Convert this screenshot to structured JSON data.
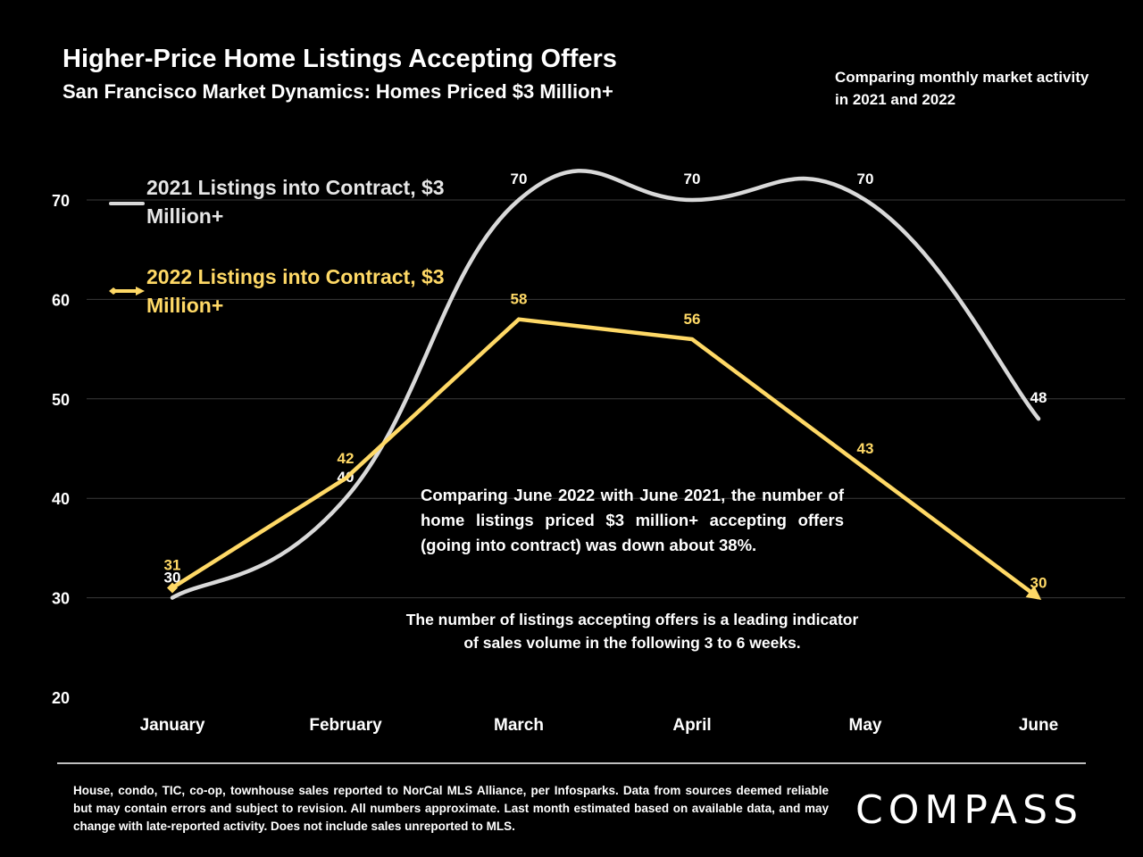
{
  "header": {
    "title": "Higher-Price Home Listings Accepting Offers",
    "subtitle": "San Francisco Market Dynamics: Homes Priced $3 Million+",
    "note": "Comparing monthly market activity in 2021 and 2022"
  },
  "chart_data": {
    "type": "line",
    "categories": [
      "January",
      "February",
      "March",
      "April",
      "May",
      "June"
    ],
    "ylim": [
      20,
      70
    ],
    "yticks": [
      20,
      30,
      40,
      50,
      60,
      70
    ],
    "grid": true,
    "legend_position": "top-left",
    "series": [
      {
        "name": "2021 Listings into Contract, $3 Million+",
        "values": [
          30,
          40,
          70,
          70,
          70,
          48
        ],
        "color": "#d9d9d9",
        "smooth": true
      },
      {
        "name": "2022 Listings into Contract, $3 Million+",
        "values": [
          31,
          42,
          58,
          56,
          43,
          30
        ],
        "color": "#ffd966",
        "smooth": false
      }
    ]
  },
  "legend": {
    "s2021": "2021 Listings into Contract, $3 Million+",
    "s2022": "2022 Listings into Contract, $3 Million+"
  },
  "annotations": {
    "main": "Comparing June 2022 with June 2021, the number of home listings priced $3 million+ accepting offers (going into contract) was down about 38%.",
    "secondary": "The number of listings accepting offers is a leading indicator of sales volume in the following 3 to 6 weeks."
  },
  "footer": {
    "footnote": "House, condo, TIC, co-op, townhouse sales reported to NorCal MLS Alliance, per Infosparks. Data from sources deemed reliable but may contain errors and subject to revision. All numbers approximate. Last month estimated based on available data, and may change with late-reported activity. Does not include sales unreported to MLS.",
    "logo": "COMPASS"
  }
}
